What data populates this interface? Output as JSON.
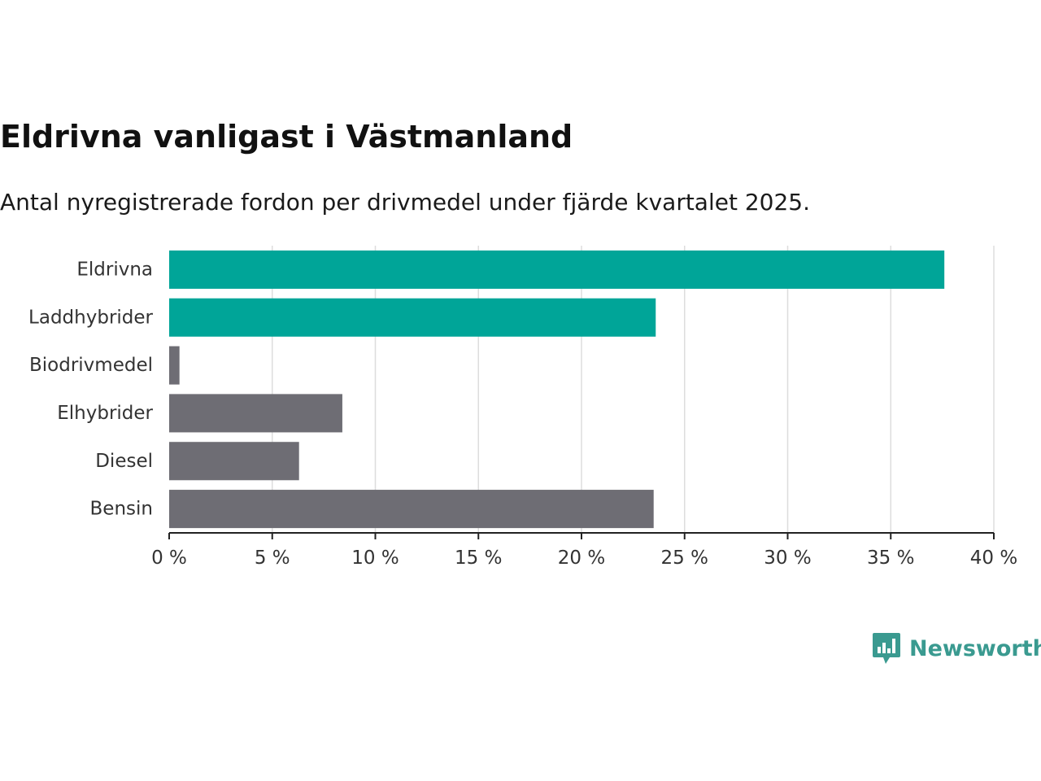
{
  "title": "Eldrivna vanligast i Västmanland",
  "subtitle": "Antal nyregistrerade fordon per drivmedel under fjärde kvartalet 2025.",
  "brand": {
    "name": "Newsworthy",
    "icon": "newsworthy-logo-icon"
  },
  "colors": {
    "highlight": "#00a598",
    "default": "#6e6d74",
    "grid": "#dddddd",
    "axis": "#222222",
    "brand": "#3a9a90"
  },
  "chart_data": {
    "type": "bar",
    "orientation": "horizontal",
    "categories": [
      "Eldrivna",
      "Laddhybrider",
      "Biodrivmedel",
      "Elhybrider",
      "Diesel",
      "Bensin"
    ],
    "values": [
      37.6,
      23.6,
      0.5,
      8.4,
      6.3,
      23.5
    ],
    "highlighted": [
      true,
      true,
      false,
      false,
      false,
      false
    ],
    "xlim": [
      0,
      40
    ],
    "xticks": [
      0,
      5,
      10,
      15,
      20,
      25,
      30,
      35,
      40
    ],
    "xtick_labels": [
      "0 %",
      "5 %",
      "10 %",
      "15 %",
      "20 %",
      "25 %",
      "30 %",
      "35 %",
      "40 %"
    ],
    "grid": true,
    "unit": "%"
  }
}
